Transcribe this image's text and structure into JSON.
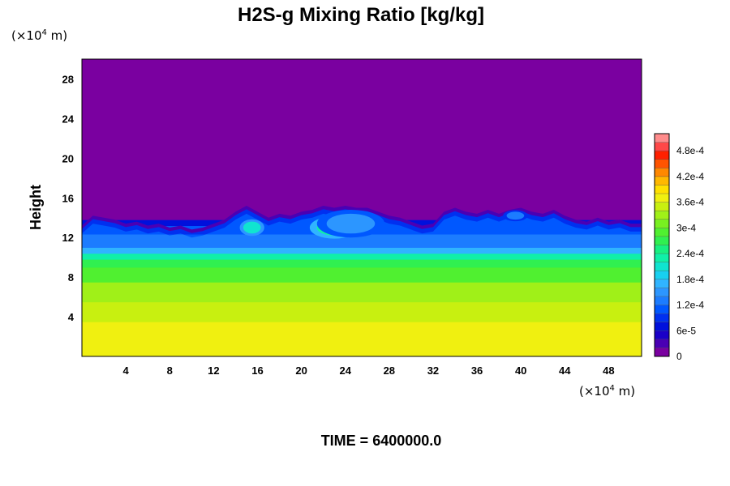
{
  "chart_data": {
    "type": "heatmap",
    "title": "H2S-g Mixing Ratio [kg/kg]",
    "ylabel": "Height",
    "xunit_prefix": "(×10",
    "xunit_exp": "4",
    "xunit_suffix": " m)",
    "yunit_prefix": "(×10",
    "yunit_exp": "4",
    "yunit_suffix": " m)",
    "xlim": [
      0,
      51
    ],
    "ylim": [
      0,
      30
    ],
    "x_ticks": [
      4,
      8,
      12,
      16,
      20,
      24,
      28,
      32,
      36,
      40,
      44,
      48
    ],
    "y_ticks": [
      4,
      8,
      12,
      16,
      20,
      24,
      28
    ],
    "colorbar": {
      "min": 0,
      "max": 0.00052,
      "levels": 26,
      "tick_values": [
        0,
        6e-05,
        0.00012,
        0.00018,
        0.00024,
        0.0003,
        0.00036,
        0.00042,
        0.00048
      ],
      "tick_labels": [
        "0",
        "6e-5",
        "1.2e-4",
        "1.8e-4",
        "2.4e-4",
        "3e-4",
        "3.6e-4",
        "4.2e-4",
        "4.8e-4"
      ],
      "colors": [
        "#7a00a0",
        "#4a00b4",
        "#1a00c8",
        "#0010dc",
        "#0030f0",
        "#0058ff",
        "#1c7cff",
        "#2c96ff",
        "#30b4ff",
        "#18d0f0",
        "#10e4d0",
        "#10f0a8",
        "#18f080",
        "#30f050",
        "#50f030",
        "#78f020",
        "#a0f018",
        "#c8f010",
        "#f0f010",
        "#ffe000",
        "#ffb800",
        "#ff8800",
        "#ff5400",
        "#ff2000",
        "#ff4848",
        "#ff8c8c"
      ]
    },
    "layers": [
      {
        "y_min": 0,
        "y_max": 3.5,
        "value": 0.000365
      },
      {
        "y_min": 3.5,
        "y_max": 5.5,
        "value": 0.00034
      },
      {
        "y_min": 5.5,
        "y_max": 7.5,
        "value": 0.00032
      },
      {
        "y_min": 7.5,
        "y_max": 9.0,
        "value": 0.00029
      },
      {
        "y_min": 9.0,
        "y_max": 9.8,
        "value": 0.00026
      },
      {
        "y_min": 9.8,
        "y_max": 10.4,
        "value": 0.00022
      },
      {
        "y_min": 10.4,
        "y_max": 11.0,
        "value": 0.00016
      },
      {
        "y_min": 11.0,
        "y_max": 12.5,
        "value": 0.00013
      },
      {
        "y_min": 12.5,
        "y_max": 13.2,
        "value": 0.00011
      },
      {
        "y_min": 13.2,
        "y_max": 13.8,
        "value": 6e-05
      },
      {
        "y_min": 13.8,
        "y_max": 30,
        "value": 0
      }
    ],
    "cloud_top": [
      [
        0,
        13.2
      ],
      [
        1,
        14.2
      ],
      [
        2,
        14.0
      ],
      [
        3,
        13.8
      ],
      [
        4,
        13.4
      ],
      [
        5,
        13.6
      ],
      [
        6,
        13.2
      ],
      [
        7,
        13.4
      ],
      [
        8,
        13.0
      ],
      [
        9,
        13.2
      ],
      [
        10,
        12.8
      ],
      [
        11,
        13.0
      ],
      [
        12,
        13.4
      ],
      [
        13,
        13.8
      ],
      [
        14,
        14.6
      ],
      [
        15,
        15.2
      ],
      [
        16,
        14.6
      ],
      [
        17,
        14.0
      ],
      [
        18,
        14.4
      ],
      [
        19,
        14.2
      ],
      [
        20,
        14.6
      ],
      [
        21,
        14.8
      ],
      [
        22,
        15.2
      ],
      [
        23,
        15.0
      ],
      [
        24,
        15.2
      ],
      [
        25,
        15.0
      ],
      [
        26,
        15.0
      ],
      [
        27,
        14.6
      ],
      [
        28,
        14.2
      ],
      [
        29,
        14.0
      ],
      [
        30,
        13.6
      ],
      [
        31,
        13.2
      ],
      [
        32,
        13.4
      ],
      [
        33,
        14.6
      ],
      [
        34,
        15.0
      ],
      [
        35,
        14.6
      ],
      [
        36,
        14.4
      ],
      [
        37,
        14.8
      ],
      [
        38,
        14.4
      ],
      [
        39,
        14.8
      ],
      [
        40,
        15.0
      ],
      [
        41,
        14.6
      ],
      [
        42,
        14.4
      ],
      [
        43,
        14.8
      ],
      [
        44,
        14.2
      ],
      [
        45,
        13.8
      ],
      [
        46,
        13.6
      ],
      [
        47,
        14.0
      ],
      [
        48,
        13.6
      ],
      [
        49,
        13.8
      ],
      [
        50,
        13.4
      ],
      [
        51,
        13.4
      ]
    ],
    "blobs": [
      {
        "cx": 15.5,
        "cy": 13.0,
        "rx": 0.8,
        "ry": 0.6,
        "value": 0.0002
      },
      {
        "cx": 23.0,
        "cy": 13.0,
        "rx": 1.6,
        "ry": 0.8,
        "value": 0.00022
      },
      {
        "cx": 24.5,
        "cy": 13.4,
        "rx": 2.2,
        "ry": 1.0,
        "value": 0.00015
      },
      {
        "cx": 39.5,
        "cy": 14.2,
        "rx": 0.8,
        "ry": 0.4,
        "value": 0.00013
      }
    ]
  },
  "footer": {
    "time_label": "TIME = 6400000.0"
  }
}
